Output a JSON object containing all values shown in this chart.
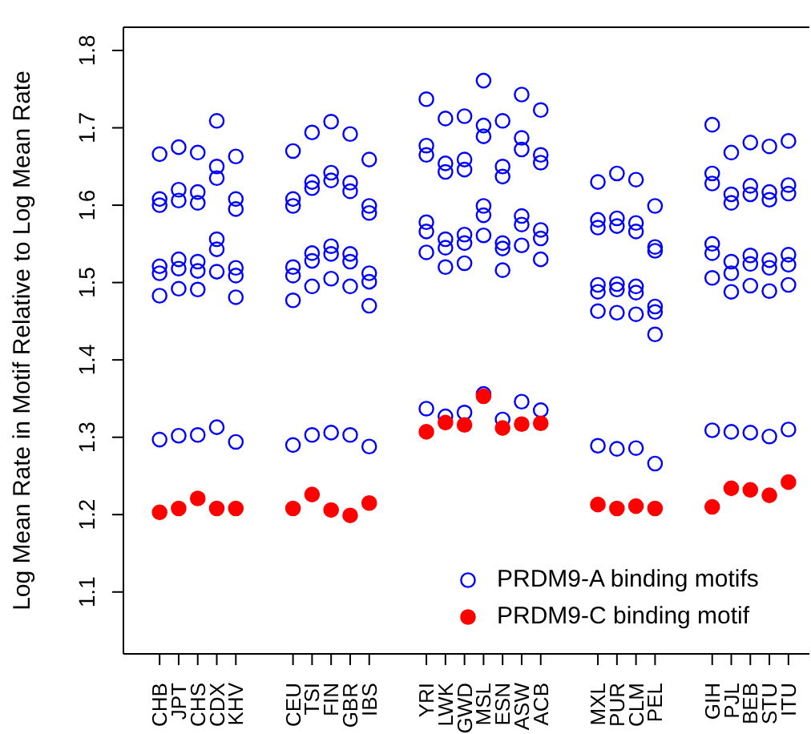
{
  "chart_data": {
    "type": "scatter",
    "ylabel": "Log Mean Rate in Motif Relative to Log Mean Rate",
    "categories": [
      "CHB",
      "JPT",
      "CHS",
      "CDX",
      "KHV",
      null,
      null,
      "CEU",
      "TSI",
      "FIN",
      "GBR",
      "IBS",
      null,
      null,
      "YRI",
      "LWK",
      "GWD",
      "MSL",
      "ESN",
      "ASW",
      "ACB",
      null,
      null,
      "MXL",
      "PUR",
      "CLM",
      "PEL",
      null,
      null,
      "GIH",
      "PJL",
      "BEB",
      "STU",
      "ITU"
    ],
    "ylim": [
      1.02,
      1.83
    ],
    "yticks": [
      1.1,
      1.2,
      1.3,
      1.4,
      1.5,
      1.6,
      1.7,
      1.8
    ],
    "grid": false,
    "legend": "bottom right",
    "marker": "circle",
    "series": [
      {
        "name": "PRDM9-A binding motifs",
        "color": "#0000ff",
        "x": [
          "CHB",
          "CHB",
          "CHB",
          "CHB",
          "CHB",
          "CHB",
          "CHB",
          "JPT",
          "JPT",
          "JPT",
          "JPT",
          "JPT",
          "JPT",
          "JPT",
          "CHS",
          "CHS",
          "CHS",
          "CHS",
          "CHS",
          "CHS",
          "CHS",
          "CDX",
          "CDX",
          "CDX",
          "CDX",
          "CDX",
          "CDX",
          "CDX",
          "KHV",
          "KHV",
          "KHV",
          "KHV",
          "KHV",
          "KHV",
          "KHV",
          "CEU",
          "CEU",
          "CEU",
          "CEU",
          "CEU",
          "CEU",
          "CEU",
          "TSI",
          "TSI",
          "TSI",
          "TSI",
          "TSI",
          "TSI",
          "TSI",
          "FIN",
          "FIN",
          "FIN",
          "FIN",
          "FIN",
          "FIN",
          "FIN",
          "GBR",
          "GBR",
          "GBR",
          "GBR",
          "GBR",
          "GBR",
          "GBR",
          "IBS",
          "IBS",
          "IBS",
          "IBS",
          "IBS",
          "IBS",
          "IBS",
          "YRI",
          "YRI",
          "YRI",
          "YRI",
          "YRI",
          "YRI",
          "YRI",
          "LWK",
          "LWK",
          "LWK",
          "LWK",
          "LWK",
          "LWK",
          "LWK",
          "GWD",
          "GWD",
          "GWD",
          "GWD",
          "GWD",
          "GWD",
          "GWD",
          "MSL",
          "MSL",
          "MSL",
          "MSL",
          "MSL",
          "MSL",
          "MSL",
          "ESN",
          "ESN",
          "ESN",
          "ESN",
          "ESN",
          "ESN",
          "ESN",
          "ASW",
          "ASW",
          "ASW",
          "ASW",
          "ASW",
          "ASW",
          "ASW",
          "ACB",
          "ACB",
          "ACB",
          "ACB",
          "ACB",
          "ACB",
          "ACB",
          "MXL",
          "MXL",
          "MXL",
          "MXL",
          "MXL",
          "MXL",
          "MXL",
          "PUR",
          "PUR",
          "PUR",
          "PUR",
          "PUR",
          "PUR",
          "PUR",
          "CLM",
          "CLM",
          "CLM",
          "CLM",
          "CLM",
          "CLM",
          "CLM",
          "PEL",
          "PEL",
          "PEL",
          "PEL",
          "PEL",
          "PEL",
          "PEL",
          "GIH",
          "GIH",
          "GIH",
          "GIH",
          "GIH",
          "GIH",
          "GIH",
          "PJL",
          "PJL",
          "PJL",
          "PJL",
          "PJL",
          "PJL",
          "PJL",
          "BEB",
          "BEB",
          "BEB",
          "BEB",
          "BEB",
          "BEB",
          "BEB",
          "STU",
          "STU",
          "STU",
          "STU",
          "STU",
          "STU",
          "STU",
          "ITU",
          "ITU",
          "ITU",
          "ITU",
          "ITU",
          "ITU",
          "ITU"
        ],
        "values": [
          1.666,
          1.608,
          1.6,
          1.521,
          1.512,
          1.483,
          1.297,
          1.675,
          1.62,
          1.606,
          1.53,
          1.518,
          1.492,
          1.302,
          1.668,
          1.617,
          1.603,
          1.527,
          1.515,
          1.491,
          1.303,
          1.709,
          1.65,
          1.635,
          1.556,
          1.543,
          1.514,
          1.313,
          1.663,
          1.608,
          1.595,
          1.519,
          1.509,
          1.481,
          1.294,
          1.67,
          1.608,
          1.599,
          1.52,
          1.509,
          1.477,
          1.29,
          1.694,
          1.63,
          1.622,
          1.538,
          1.528,
          1.495,
          1.303,
          1.708,
          1.642,
          1.632,
          1.547,
          1.537,
          1.505,
          1.306,
          1.692,
          1.629,
          1.618,
          1.537,
          1.527,
          1.495,
          1.303,
          1.659,
          1.599,
          1.59,
          1.512,
          1.501,
          1.47,
          1.288,
          1.737,
          1.677,
          1.665,
          1.578,
          1.566,
          1.539,
          1.337,
          1.712,
          1.654,
          1.643,
          1.556,
          1.545,
          1.52,
          1.327,
          1.715,
          1.659,
          1.646,
          1.562,
          1.551,
          1.525,
          1.332,
          1.761,
          1.703,
          1.689,
          1.599,
          1.587,
          1.561,
          1.356,
          1.709,
          1.65,
          1.637,
          1.551,
          1.544,
          1.516,
          1.323,
          1.743,
          1.687,
          1.672,
          1.586,
          1.575,
          1.548,
          1.346,
          1.723,
          1.665,
          1.655,
          1.568,
          1.557,
          1.53,
          1.335,
          1.63,
          1.581,
          1.571,
          1.497,
          1.488,
          1.463,
          1.289,
          1.641,
          1.583,
          1.573,
          1.498,
          1.491,
          1.461,
          1.285,
          1.633,
          1.577,
          1.566,
          1.495,
          1.487,
          1.459,
          1.286,
          1.599,
          1.546,
          1.541,
          1.469,
          1.462,
          1.433,
          1.266,
          1.704,
          1.641,
          1.628,
          1.55,
          1.538,
          1.506,
          1.309,
          1.668,
          1.614,
          1.603,
          1.527,
          1.512,
          1.488,
          1.307,
          1.681,
          1.625,
          1.614,
          1.535,
          1.524,
          1.496,
          1.306,
          1.676,
          1.617,
          1.607,
          1.529,
          1.519,
          1.489,
          1.301,
          1.683,
          1.626,
          1.615,
          1.536,
          1.523,
          1.497,
          1.31
        ]
      },
      {
        "name": "PRDM9-C binding motif",
        "color": "#ff0000",
        "x": [
          "CHB",
          "JPT",
          "CHS",
          "CDX",
          "KHV",
          "CEU",
          "TSI",
          "FIN",
          "GBR",
          "IBS",
          "YRI",
          "LWK",
          "GWD",
          "MSL",
          "ESN",
          "ASW",
          "ACB",
          "MXL",
          "PUR",
          "CLM",
          "PEL",
          "GIH",
          "PJL",
          "BEB",
          "STU",
          "ITU"
        ],
        "values": [
          1.203,
          1.208,
          1.221,
          1.208,
          1.208,
          1.208,
          1.226,
          1.206,
          1.199,
          1.215,
          1.307,
          1.319,
          1.316,
          1.353,
          1.312,
          1.317,
          1.318,
          1.213,
          1.208,
          1.211,
          1.208,
          1.21,
          1.234,
          1.232,
          1.225,
          1.242
        ]
      }
    ]
  }
}
